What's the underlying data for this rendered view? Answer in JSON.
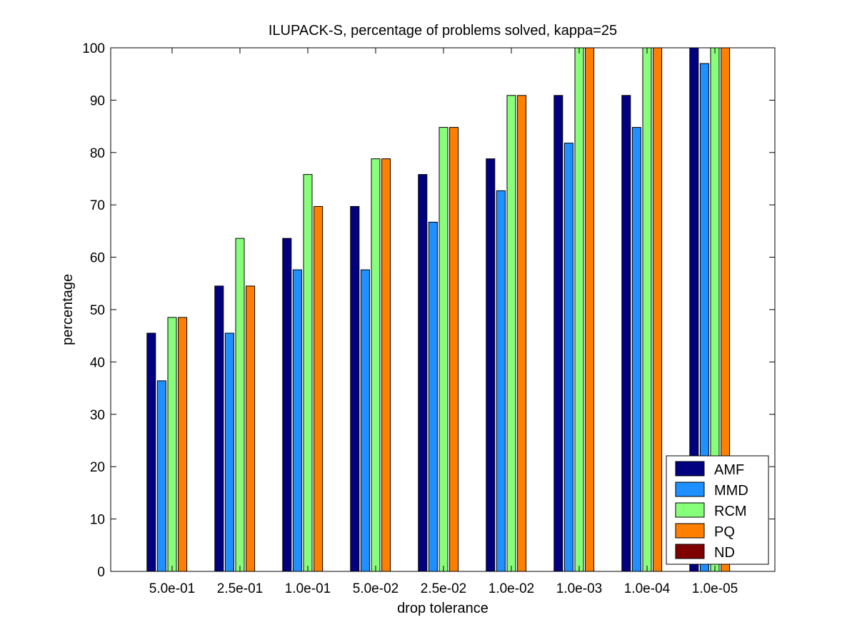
{
  "chart_data": {
    "type": "bar",
    "title": "ILUPACK-S, percentage of problems solved, kappa=25",
    "xlabel": "drop tolerance",
    "ylabel": "percentage",
    "categories": [
      "5.0e-01",
      "2.5e-01",
      "1.0e-01",
      "5.0e-02",
      "2.5e-02",
      "1.0e-02",
      "1.0e-03",
      "1.0e-04",
      "1.0e-05"
    ],
    "ylim": [
      0,
      100
    ],
    "yticks": [
      0,
      10,
      20,
      30,
      40,
      50,
      60,
      70,
      80,
      90,
      100
    ],
    "grid": false,
    "legend_position": "bottom-right",
    "series": [
      {
        "name": "AMF",
        "color": "#000080",
        "values": [
          45.5,
          54.5,
          63.6,
          69.7,
          75.8,
          78.8,
          90.9,
          90.9,
          100
        ]
      },
      {
        "name": "MMD",
        "color": "#1e90ff",
        "values": [
          36.4,
          45.5,
          57.6,
          57.6,
          66.7,
          72.7,
          81.8,
          84.8,
          97
        ]
      },
      {
        "name": "RCM",
        "color": "#88ff7a",
        "values": [
          48.5,
          63.6,
          75.8,
          78.8,
          84.8,
          90.9,
          100,
          100,
          100
        ]
      },
      {
        "name": "PQ",
        "color": "#ff8000",
        "values": [
          48.5,
          54.5,
          69.7,
          78.8,
          84.8,
          90.9,
          100,
          100,
          100
        ]
      },
      {
        "name": "ND",
        "color": "#800000",
        "values": [
          0,
          0,
          0,
          0,
          0,
          0,
          0,
          0,
          0
        ]
      }
    ]
  }
}
